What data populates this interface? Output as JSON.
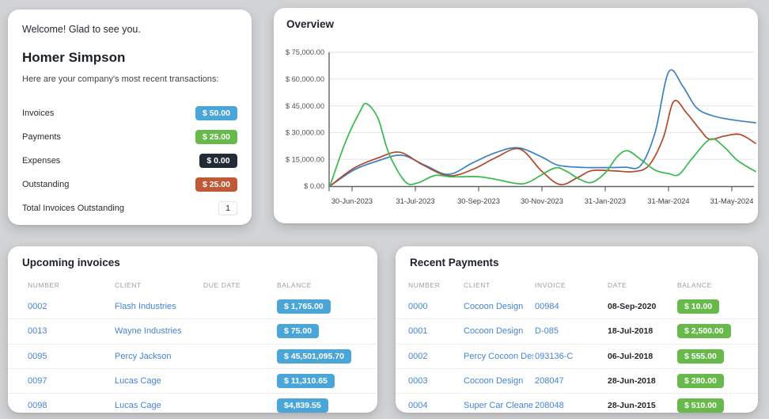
{
  "colors": {
    "page_background": "#d2d3d5",
    "card_background": "#ffffff",
    "badge_blue": "#4aa5d9",
    "badge_green": "#68b94b",
    "badge_dark": "#232b37",
    "badge_orange": "#c05a36",
    "link_blue": "#4484d4",
    "line_blue": "#3d80c2",
    "line_green": "#35ba4b",
    "line_red": "#b4472b"
  },
  "welcome_card": {
    "greeting": "Welcome! Glad to see you.",
    "user_name": "Homer Simpson",
    "subtitle": "Here are your company's most recent transactions:",
    "stats": [
      {
        "label": "Invoices",
        "value": "$ 50.00",
        "style": "blue"
      },
      {
        "label": "Payments",
        "value": "$ 25.00",
        "style": "green"
      },
      {
        "label": "Expenses",
        "value": "$ 0.00",
        "style": "dark"
      },
      {
        "label": "Outstanding",
        "value": "$ 25.00",
        "style": "orange"
      },
      {
        "label": "Total Invoices Outstanding",
        "value": "1",
        "style": "plain"
      }
    ]
  },
  "overview_card": {
    "title": "Overview"
  },
  "chart_data": {
    "type": "line",
    "title": "Overview",
    "xlabel": "",
    "ylabel": "",
    "ylim": [
      0,
      75000
    ],
    "grid": "horizontal only",
    "legend": "none",
    "y_tick_labels": [
      "$ 75,000.00",
      "$ 60,000.00",
      "$ 45,000.00",
      "$ 30,000.00",
      "$ 15,000.00",
      "$ 0.00"
    ],
    "y_tick_values": [
      75000,
      60000,
      45000,
      30000,
      15000,
      0
    ],
    "x_tick_labels": [
      "30-Jun-2023",
      "31-Jul-2023",
      "30-Sep-2023",
      "30-Nov-2023",
      "31-Jan-2023",
      "31-Mar-2024",
      "31-May-2024"
    ],
    "x_unit": "fraction of plot width, 0 = axis origin (30-Jun-2023), 1 = right edge (past 31-May-2024)",
    "series": [
      {
        "name": "blue",
        "color": "#3d80c2",
        "points": [
          [
            0.0,
            0
          ],
          [
            0.056,
            9000
          ],
          [
            0.113,
            14200
          ],
          [
            0.169,
            17300
          ],
          [
            0.225,
            11500
          ],
          [
            0.279,
            6600
          ],
          [
            0.335,
            13000
          ],
          [
            0.39,
            18800
          ],
          [
            0.442,
            21500
          ],
          [
            0.498,
            16300
          ],
          [
            0.535,
            11800
          ],
          [
            0.591,
            10500
          ],
          [
            0.647,
            10400
          ],
          [
            0.693,
            10600
          ],
          [
            0.73,
            11500
          ],
          [
            0.764,
            30000
          ],
          [
            0.796,
            64000
          ],
          [
            0.829,
            56000
          ],
          [
            0.861,
            44000
          ],
          [
            0.898,
            39500
          ],
          [
            0.944,
            37200
          ],
          [
            1.0,
            35500
          ]
        ]
      },
      {
        "name": "red",
        "color": "#b4472b",
        "points": [
          [
            0.0,
            0
          ],
          [
            0.056,
            10000
          ],
          [
            0.113,
            15800
          ],
          [
            0.164,
            19000
          ],
          [
            0.219,
            11800
          ],
          [
            0.279,
            5800
          ],
          [
            0.335,
            9300
          ],
          [
            0.39,
            16000
          ],
          [
            0.446,
            20800
          ],
          [
            0.498,
            8300
          ],
          [
            0.541,
            900
          ],
          [
            0.582,
            4800
          ],
          [
            0.615,
            8700
          ],
          [
            0.665,
            8600
          ],
          [
            0.712,
            8100
          ],
          [
            0.749,
            11500
          ],
          [
            0.783,
            27000
          ],
          [
            0.808,
            47500
          ],
          [
            0.838,
            41000
          ],
          [
            0.87,
            31500
          ],
          [
            0.892,
            26300
          ],
          [
            0.926,
            28000
          ],
          [
            0.963,
            29000
          ],
          [
            1.0,
            24000
          ]
        ]
      },
      {
        "name": "green",
        "color": "#35ba4b",
        "points": [
          [
            0.0,
            0
          ],
          [
            0.037,
            25000
          ],
          [
            0.071,
            42000
          ],
          [
            0.086,
            46200
          ],
          [
            0.113,
            38000
          ],
          [
            0.139,
            18000
          ],
          [
            0.177,
            2500
          ],
          [
            0.206,
            1800
          ],
          [
            0.247,
            6000
          ],
          [
            0.288,
            5200
          ],
          [
            0.349,
            5300
          ],
          [
            0.396,
            3500
          ],
          [
            0.437,
            1500
          ],
          [
            0.467,
            2200
          ],
          [
            0.526,
            10000
          ],
          [
            0.554,
            8500
          ],
          [
            0.587,
            3800
          ],
          [
            0.615,
            2100
          ],
          [
            0.647,
            7500
          ],
          [
            0.675,
            16500
          ],
          [
            0.699,
            19800
          ],
          [
            0.73,
            15000
          ],
          [
            0.764,
            9000
          ],
          [
            0.796,
            7000
          ],
          [
            0.82,
            6500
          ],
          [
            0.851,
            15500
          ],
          [
            0.894,
            26300
          ],
          [
            0.926,
            22000
          ],
          [
            0.957,
            14500
          ],
          [
            1.0,
            8200
          ]
        ]
      }
    ]
  },
  "upcoming_card": {
    "title": "Upcoming invoices",
    "columns": [
      "NUMBER",
      "CLIENT",
      "DUE DATE",
      "BALANCE"
    ],
    "rows": [
      {
        "number": "0002",
        "client": "Flash Industries",
        "due_date": "",
        "balance": "$ 1,765.00"
      },
      {
        "number": "0013",
        "client": "Wayne Industries",
        "due_date": "",
        "balance": "$ 75.00"
      },
      {
        "number": "0095",
        "client": "Percy Jackson",
        "due_date": "",
        "balance": "$ 45,501,095.70"
      },
      {
        "number": "0097",
        "client": "Lucas Cage",
        "due_date": "",
        "balance": "$ 11,310.65"
      },
      {
        "number": "0098",
        "client": "Lucas Cage",
        "due_date": "",
        "balance": "$4,839.55"
      }
    ]
  },
  "recent_card": {
    "title": "Recent Payments",
    "columns": [
      "NUMBER",
      "CLIENT",
      "INVOICE",
      "DATE",
      "BALANCE"
    ],
    "rows": [
      {
        "number": "0000",
        "client": "Cocoon Design",
        "invoice": "00984",
        "date": "08-Sep-2020",
        "balance": "$ 10.00"
      },
      {
        "number": "0001",
        "client": "Cocoon Design",
        "invoice": "D-085",
        "date": "18-Jul-2018",
        "balance": "$ 2,500.00"
      },
      {
        "number": "0002",
        "client": "Percy Cocoon Desi",
        "invoice": "093136-C",
        "date": "06-Jul-2018",
        "balance": "$ 555.00"
      },
      {
        "number": "0003",
        "client": "Cocoon Design",
        "invoice": "208047",
        "date": "28-Jun-2018",
        "balance": "$ 280.00"
      },
      {
        "number": "0004",
        "client": "Super Car Cleaners",
        "invoice": "208048",
        "date": "28-Jun-2015",
        "balance": "$ 510.00"
      }
    ]
  }
}
